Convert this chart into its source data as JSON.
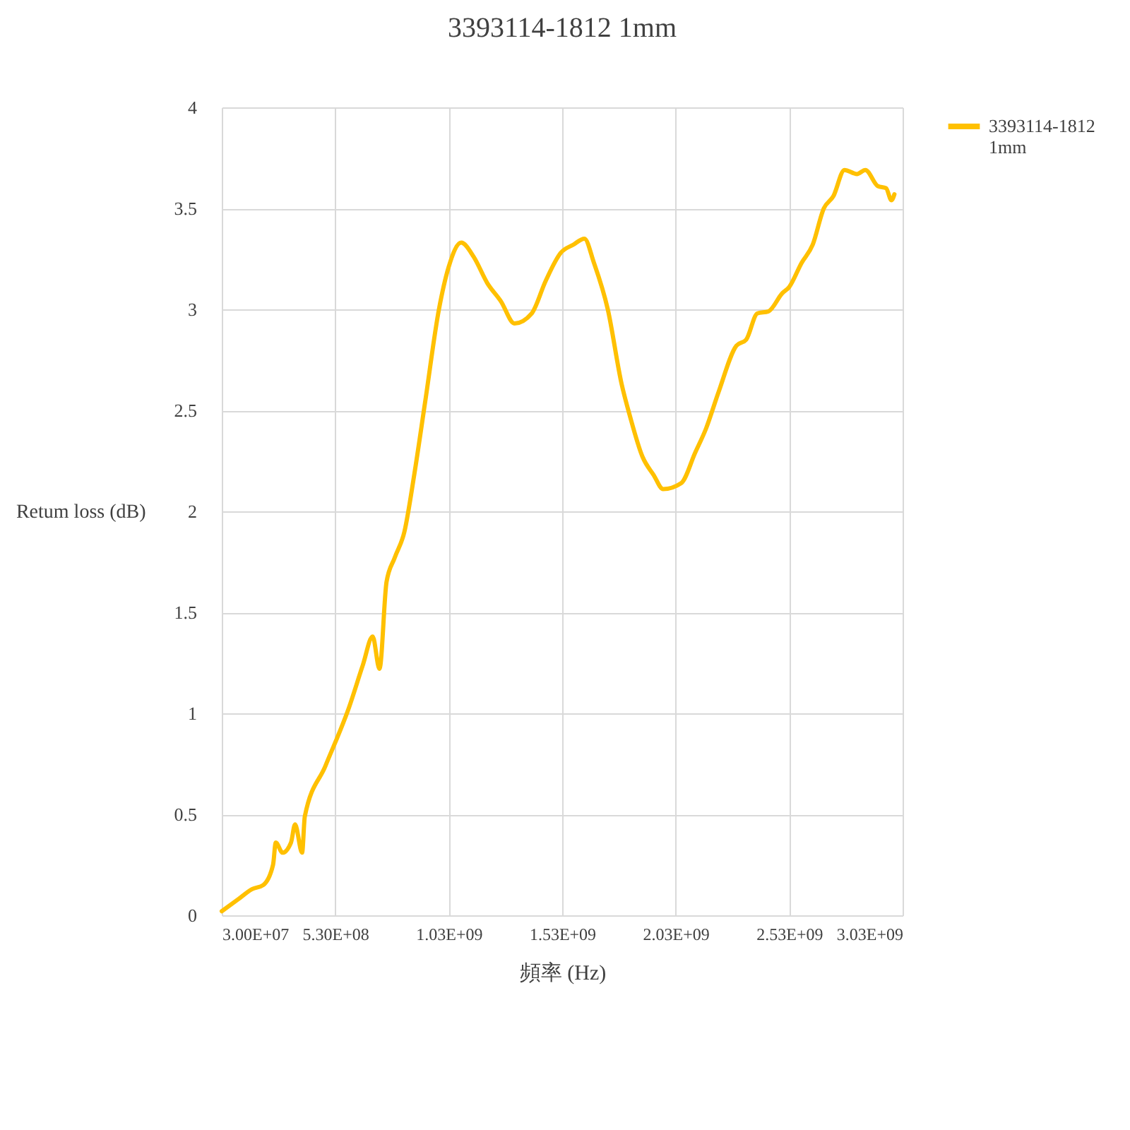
{
  "chart_data": {
    "type": "line",
    "title": "3393114-1812 1mm",
    "xlabel": "頻率 (Hz)",
    "ylabel": "Retum loss (dB)",
    "x": [
      30000000.0,
      103000000.0,
      164000000.0,
      213000000.0,
      256000000.0,
      268000000.0,
      298000000.0,
      335000000.0,
      353000000.0,
      384000000.0,
      396000000.0,
      487000000.0,
      591000000.0,
      652000000.0,
      695000000.0,
      725000000.0,
      756000000.0,
      792000000.0,
      835000000.0,
      878000000.0,
      926000000.0,
      987000000.0,
      1030000000.0,
      1085000000.0,
      1140000000.0,
      1200000000.0,
      1260000000.0,
      1320000000.0,
      1396000000.0,
      1457000000.0,
      1524000000.0,
      1579000000.0,
      1628000000.0,
      1670000000.0,
      1731000000.0,
      1792000000.0,
      1829000000.0,
      1884000000.0,
      1933000000.0,
      1975000000.0,
      2055000000.0,
      2116000000.0,
      2164000000.0,
      2219000000.0,
      2298000000.0,
      2341000000.0,
      2390000000.0,
      2439000000.0,
      2500000000.0,
      2530000000.0,
      2585000000.0,
      2634000000.0,
      2683000000.0,
      2725000000.0,
      2774000000.0,
      2829000000.0,
      2866000000.0,
      2921000000.0,
      2957000000.0,
      2981000000.0,
      2994000000.0
    ],
    "series": [
      {
        "name": "3393114-1812 1mm",
        "color": "#ffc000",
        "values": [
          0.02,
          0.08,
          0.13,
          0.15,
          0.25,
          0.36,
          0.31,
          0.36,
          0.45,
          0.31,
          0.49,
          0.74,
          1.03,
          1.24,
          1.38,
          1.22,
          1.65,
          1.77,
          1.9,
          2.18,
          2.54,
          3.0,
          3.21,
          3.33,
          3.26,
          3.13,
          3.04,
          2.93,
          2.98,
          3.14,
          3.28,
          3.32,
          3.35,
          3.23,
          3.0,
          2.63,
          2.47,
          2.27,
          2.18,
          2.11,
          2.14,
          2.29,
          2.41,
          2.59,
          2.82,
          2.85,
          2.98,
          2.99,
          3.08,
          3.11,
          3.23,
          3.32,
          3.5,
          3.56,
          3.69,
          3.67,
          3.69,
          3.61,
          3.6,
          3.54,
          3.57
        ]
      }
    ],
    "xlim": [
      30000000.0,
      3030000000.0
    ],
    "xticks": [
      {
        "value": 30000000.0,
        "label": "3.00E+07"
      },
      {
        "value": 530000000.0,
        "label": "5.30E+08"
      },
      {
        "value": 1030000000.0,
        "label": "1.03E+09"
      },
      {
        "value": 1530000000.0,
        "label": "1.53E+09"
      },
      {
        "value": 2030000000.0,
        "label": "2.03E+09"
      },
      {
        "value": 2530000000.0,
        "label": "2.53E+09"
      },
      {
        "value": 3030000000.0,
        "label": "3.03E+09"
      }
    ],
    "ylim": [
      0,
      4
    ],
    "yticks": [
      0,
      0.5,
      1,
      1.5,
      2,
      2.5,
      3,
      3.5,
      4
    ],
    "grid": true,
    "legend": "right"
  }
}
